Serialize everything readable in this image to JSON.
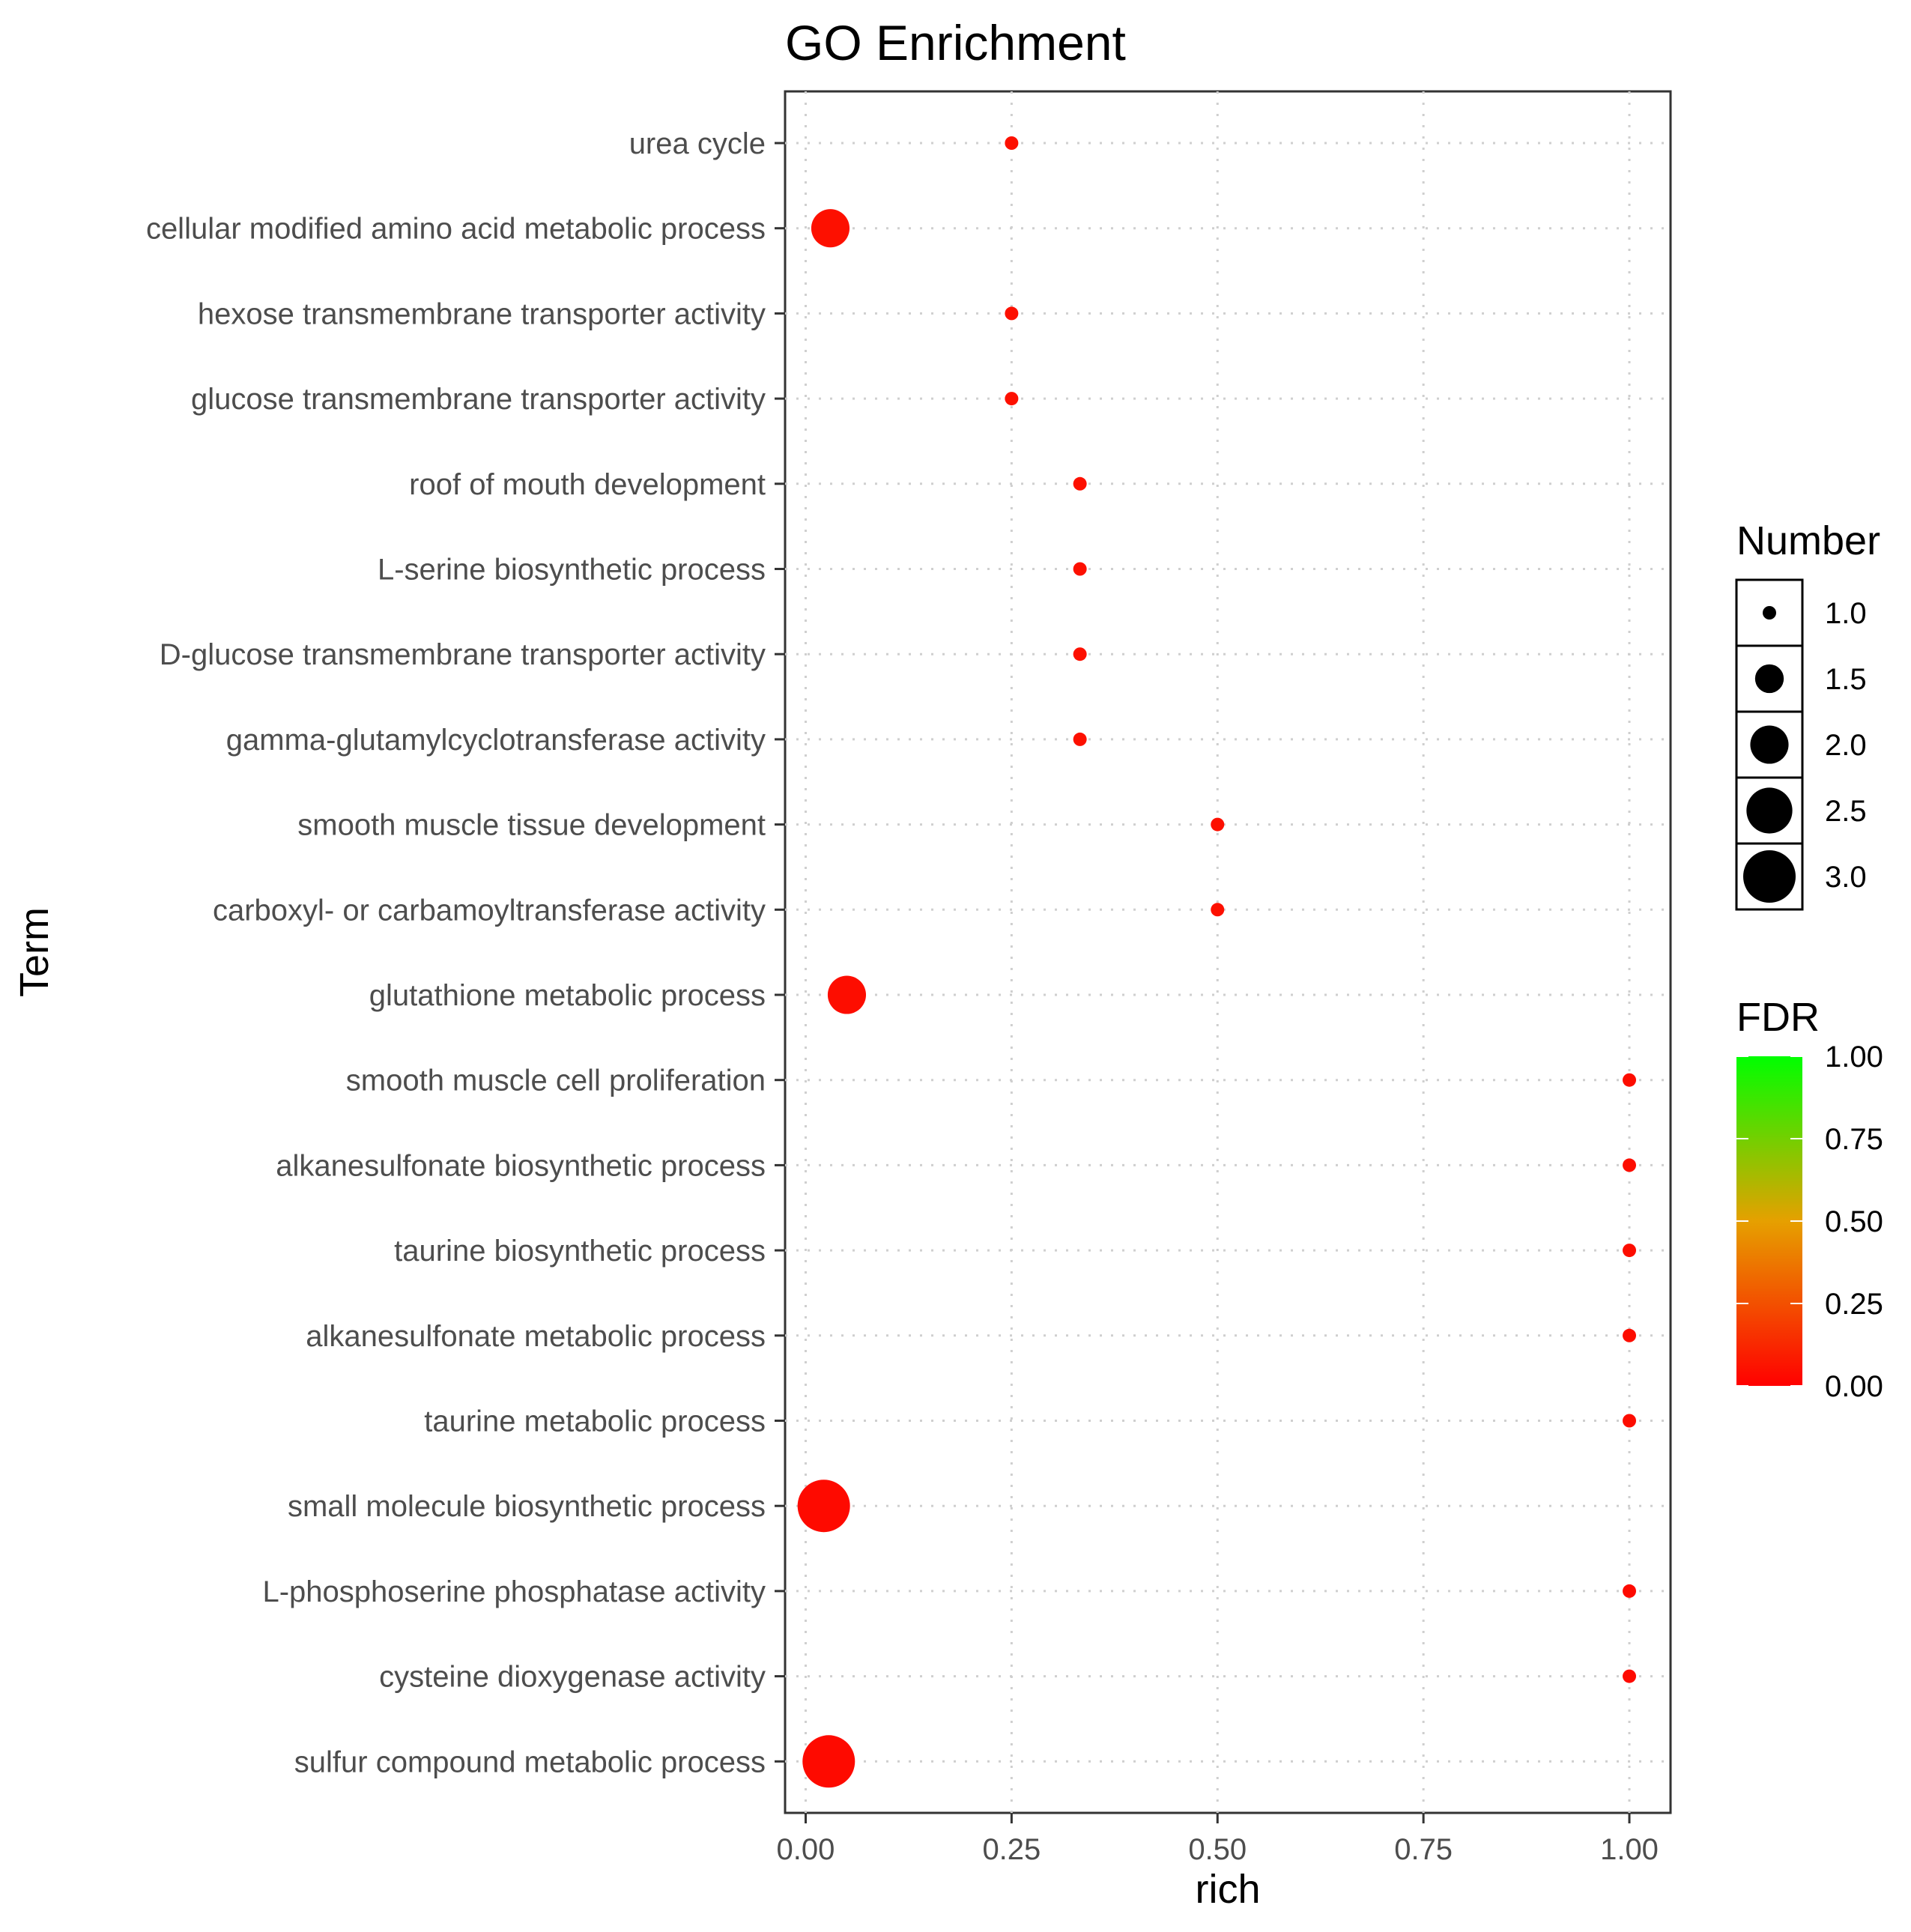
{
  "chart_data": {
    "type": "scatter",
    "title": "GO Enrichment",
    "xlabel": "rich",
    "ylabel": "Term",
    "xlim": [
      -0.025,
      1.05
    ],
    "x_ticks": [
      "0.00",
      "0.25",
      "0.50",
      "0.75",
      "1.00"
    ],
    "grid": true,
    "points": [
      {
        "term": "urea cycle",
        "rich": 0.25,
        "number": 1,
        "fdr": 0.05
      },
      {
        "term": "cellular modified amino acid metabolic process",
        "rich": 0.03,
        "number": 2,
        "fdr": 0.05
      },
      {
        "term": "hexose transmembrane transporter activity",
        "rich": 0.25,
        "number": 1,
        "fdr": 0.05
      },
      {
        "term": "glucose transmembrane transporter activity",
        "rich": 0.25,
        "number": 1,
        "fdr": 0.05
      },
      {
        "term": "roof of mouth development",
        "rich": 0.333,
        "number": 1,
        "fdr": 0.05
      },
      {
        "term": "L-serine biosynthetic process",
        "rich": 0.333,
        "number": 1,
        "fdr": 0.05
      },
      {
        "term": "D-glucose transmembrane transporter activity",
        "rich": 0.333,
        "number": 1,
        "fdr": 0.05
      },
      {
        "term": "gamma-glutamylcyclotransferase activity",
        "rich": 0.333,
        "number": 1,
        "fdr": 0.05
      },
      {
        "term": "smooth muscle tissue development",
        "rich": 0.5,
        "number": 1,
        "fdr": 0.05
      },
      {
        "term": "carboxyl- or carbamoyltransferase activity",
        "rich": 0.5,
        "number": 1,
        "fdr": 0.05
      },
      {
        "term": "glutathione metabolic process",
        "rich": 0.05,
        "number": 2,
        "fdr": 0.04
      },
      {
        "term": "smooth muscle cell proliferation",
        "rich": 1.0,
        "number": 1,
        "fdr": 0.04
      },
      {
        "term": "alkanesulfonate biosynthetic process",
        "rich": 1.0,
        "number": 1,
        "fdr": 0.04
      },
      {
        "term": "taurine biosynthetic process",
        "rich": 1.0,
        "number": 1,
        "fdr": 0.04
      },
      {
        "term": "alkanesulfonate metabolic process",
        "rich": 1.0,
        "number": 1,
        "fdr": 0.04
      },
      {
        "term": "taurine metabolic process",
        "rich": 1.0,
        "number": 1,
        "fdr": 0.04
      },
      {
        "term": "small molecule biosynthetic process",
        "rich": 0.022,
        "number": 3,
        "fdr": 0.03
      },
      {
        "term": "L-phosphoserine phosphatase activity",
        "rich": 1.0,
        "number": 1,
        "fdr": 0.03
      },
      {
        "term": "cysteine dioxygenase activity",
        "rich": 1.0,
        "number": 1,
        "fdr": 0.03
      },
      {
        "term": "sulfur compound metabolic process",
        "rich": 0.028,
        "number": 3,
        "fdr": 0.03
      }
    ],
    "size_legend": {
      "title": "Number",
      "entries": [
        {
          "value": 1.0,
          "label": "1.0"
        },
        {
          "value": 1.5,
          "label": "1.5"
        },
        {
          "value": 2.0,
          "label": "2.0"
        },
        {
          "value": 2.5,
          "label": "2.5"
        },
        {
          "value": 3.0,
          "label": "3.0"
        }
      ]
    },
    "color_legend": {
      "title": "FDR",
      "range": [
        0.0,
        1.0
      ],
      "low_color": "#ff0000",
      "mid_color": "#e6a000",
      "high_color": "#00ff00",
      "ticks": [
        {
          "value": 1.0,
          "label": "1.00"
        },
        {
          "value": 0.75,
          "label": "0.75"
        },
        {
          "value": 0.5,
          "label": "0.50"
        },
        {
          "value": 0.25,
          "label": "0.25"
        },
        {
          "value": 0.0,
          "label": "0.00"
        }
      ]
    }
  }
}
